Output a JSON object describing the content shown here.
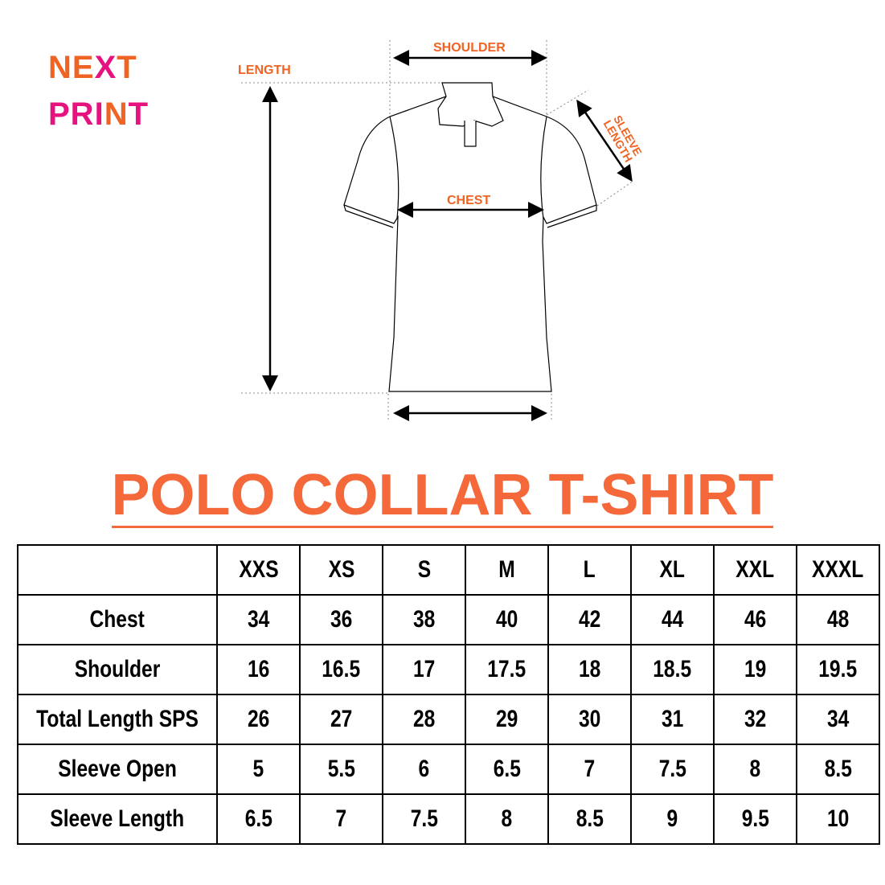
{
  "logo": {
    "line1_parts": [
      "N",
      "E",
      "X",
      "T"
    ],
    "line2_parts": [
      "PRI",
      "N",
      "T"
    ],
    "colors": {
      "orange": "#ef6323",
      "pink": "#e6127f"
    }
  },
  "diagram": {
    "labels": {
      "shoulder": "SHOULDER",
      "length": "LENGTH",
      "sleeve_length": "SLEEVE LENGTH",
      "chest": "CHEST"
    }
  },
  "title": "POLO COLLAR T-SHIRT",
  "title_color": "#f4683a",
  "table": {
    "sizes": [
      "XXS",
      "XS",
      "S",
      "M",
      "L",
      "XL",
      "XXL",
      "XXXL"
    ],
    "rows": [
      {
        "label": "Chest",
        "values": [
          "34",
          "36",
          "38",
          "40",
          "42",
          "44",
          "46",
          "48"
        ]
      },
      {
        "label": "Shoulder",
        "values": [
          "16",
          "16.5",
          "17",
          "17.5",
          "18",
          "18.5",
          "19",
          "19.5"
        ]
      },
      {
        "label": "Total Length SPS",
        "values": [
          "26",
          "27",
          "28",
          "29",
          "30",
          "31",
          "32",
          "34"
        ]
      },
      {
        "label": "Sleeve Open",
        "values": [
          "5",
          "5.5",
          "6",
          "6.5",
          "7",
          "7.5",
          "8",
          "8.5"
        ]
      },
      {
        "label": "Sleeve Length",
        "values": [
          "6.5",
          "7",
          "7.5",
          "8",
          "8.5",
          "9",
          "9.5",
          "10"
        ]
      }
    ]
  }
}
